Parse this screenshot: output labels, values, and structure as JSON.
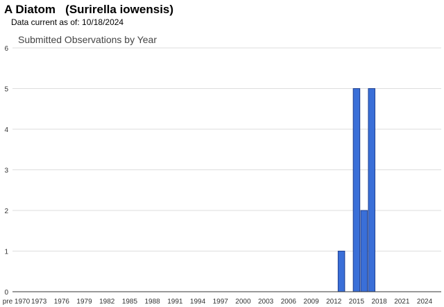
{
  "header": {
    "title": "A Diatom   (Surirella iowensis)",
    "subtitle": "Data current as of: 10/18/2024"
  },
  "chart_data": {
    "type": "bar",
    "title": "Submitted Observations by Year",
    "xlabel": "",
    "ylabel": "",
    "ylim": [
      0,
      6
    ],
    "y_ticks": [
      0,
      1,
      2,
      3,
      4,
      5,
      6
    ],
    "x_tick_labels": [
      "pre 1970",
      "1973",
      "1976",
      "1979",
      "1982",
      "1985",
      "1988",
      "1991",
      "1994",
      "1997",
      "2000",
      "2003",
      "2006",
      "2009",
      "2012",
      "2015",
      "2018",
      "2021",
      "2024"
    ],
    "categories": [
      "2013",
      "2015",
      "2016",
      "2017"
    ],
    "values": [
      1,
      5,
      2,
      5
    ],
    "grid": true,
    "bar_color": "#3a6fd8",
    "bar_edge_color": "#1f3f8f"
  }
}
